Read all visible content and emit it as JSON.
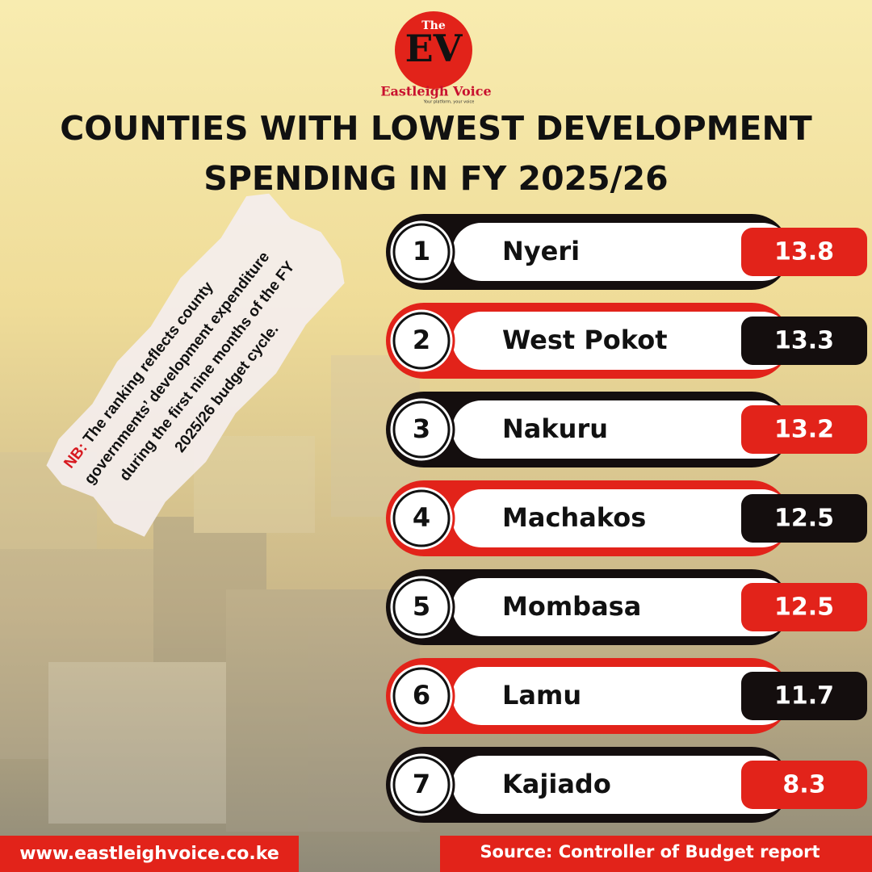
{
  "logo": {
    "small": "The",
    "mark": "EV",
    "name": "Eastleigh Voice",
    "tagline": "Your platform, your voice"
  },
  "header": {
    "title_lines": [
      "COUNTIES WITH LOWEST DEVELOPMENT",
      "SPENDING IN FY 2025/26"
    ]
  },
  "note": {
    "label": "NB:",
    "lines": [
      "The ranking reflects county",
      "governments’ development expenditure",
      "during the first nine months of the FY",
      "2025/26 budget cycle."
    ]
  },
  "table": {
    "rows": [
      [
        "1",
        "Nyeri",
        "13.8"
      ],
      [
        "2",
        "West Pokot",
        "13.3"
      ],
      [
        "3",
        "Nakuru",
        "13.2"
      ],
      [
        "4",
        "Machakos",
        "12.5"
      ],
      [
        "5",
        "Mombasa",
        "12.5"
      ],
      [
        "6",
        "Lamu",
        "11.7"
      ],
      [
        "7",
        "Kajiado",
        "8.3"
      ]
    ]
  },
  "footer": {
    "website": "www.eastleighvoice.co.ke",
    "source": "Source: Controller of Budget report"
  }
}
